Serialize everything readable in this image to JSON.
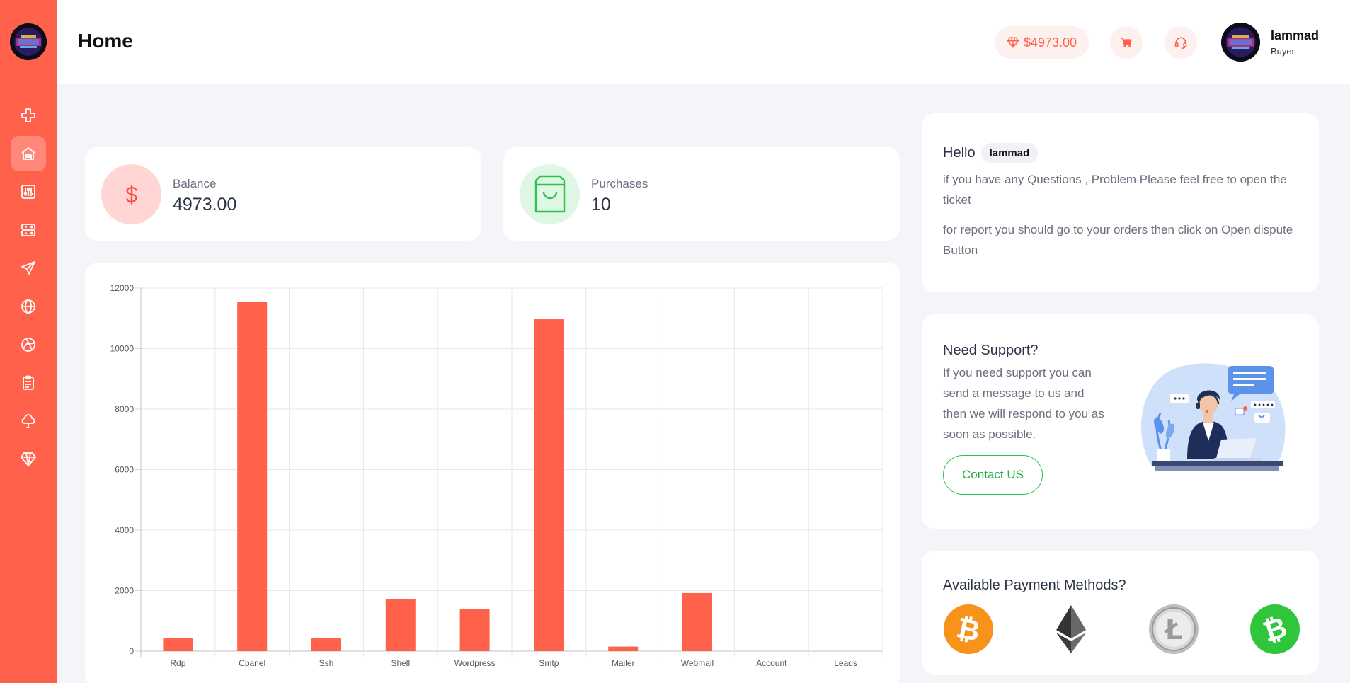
{
  "header": {
    "title": "Home",
    "balance": "$4973.00",
    "user": {
      "name": "Iammad",
      "role": "Buyer"
    }
  },
  "sidebar": {
    "items": [
      {
        "icon": "plus-icon"
      },
      {
        "icon": "home-icon",
        "active": true
      },
      {
        "icon": "sliders-icon"
      },
      {
        "icon": "server-icon"
      },
      {
        "icon": "send-icon"
      },
      {
        "icon": "globe-icon"
      },
      {
        "icon": "aperture-icon"
      },
      {
        "icon": "clipboard-icon"
      },
      {
        "icon": "tree-icon"
      },
      {
        "icon": "diamond-icon"
      }
    ]
  },
  "stats": {
    "balance": {
      "label": "Balance",
      "value": "4973.00"
    },
    "purchases": {
      "label": "Purchases",
      "value": "10"
    }
  },
  "hello": {
    "greeting": "Hello",
    "username": "Iammad",
    "line1": "if you have any Questions , Problem Please feel free to open the ticket",
    "line2": "for report you should go to your orders then click on Open dispute Button"
  },
  "support": {
    "title": "Need Support?",
    "text": "If you need support you can send a message to us and then we will respond to you as soon as possible.",
    "button": "Contact US"
  },
  "payment": {
    "title": "Available Payment Methods?",
    "methods": [
      "bitcoin-icon",
      "ethereum-icon",
      "litecoin-icon",
      "bitcoin-cash-icon"
    ]
  },
  "colors": {
    "accent": "#ff614b",
    "bar": "#ff614b",
    "green": "#2cc24e",
    "background": "#f4f5f8"
  },
  "chart_data": {
    "type": "bar",
    "categories": [
      "Rdp",
      "Cpanel",
      "Ssh",
      "Shell",
      "Wordpress",
      "Smtp",
      "Mailer",
      "Webmail",
      "Account",
      "Leads"
    ],
    "values": [
      420,
      11550,
      420,
      1720,
      1380,
      10970,
      150,
      1920,
      0,
      0
    ],
    "ylim": [
      0,
      12000
    ],
    "yticks": [
      0,
      2000,
      4000,
      6000,
      8000,
      10000,
      12000
    ],
    "grid": true
  }
}
